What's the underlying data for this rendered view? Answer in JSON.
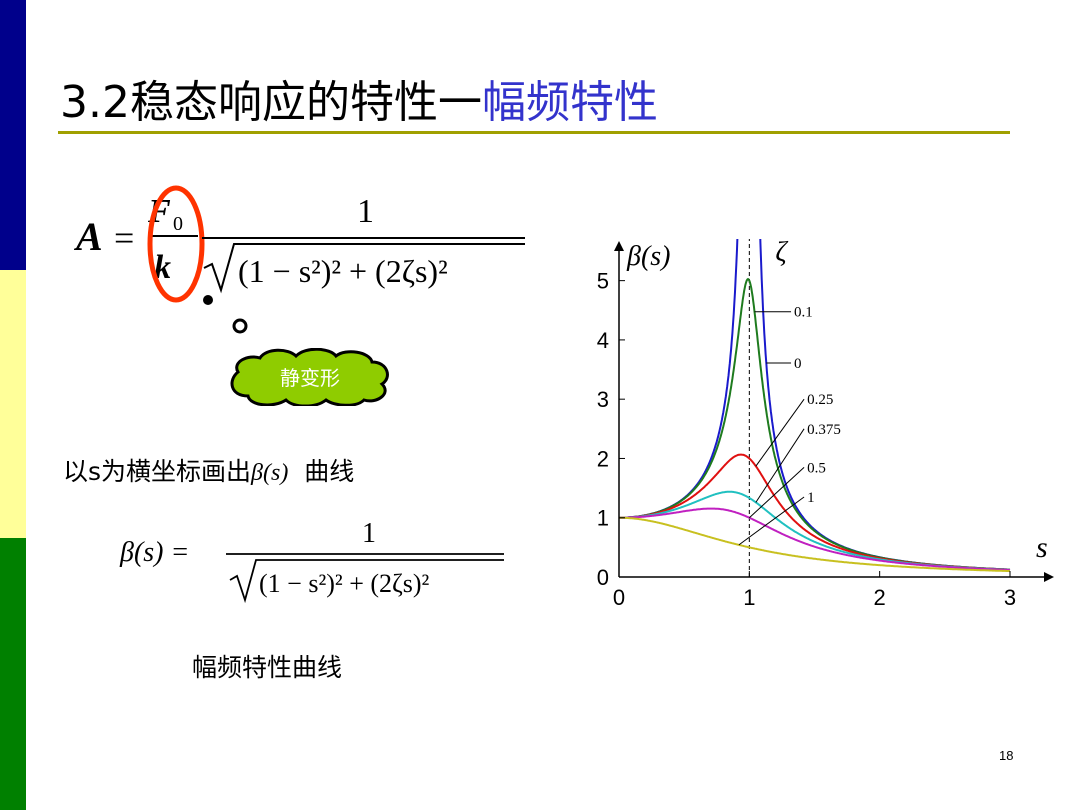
{
  "title": {
    "main": "3.2稳态响应的特性一",
    "highlight": "幅频特性"
  },
  "formula_top": {
    "lhs": "A",
    "eq": "=",
    "f0": "F",
    "f0_sub": "0",
    "k": "k",
    "num": "1",
    "den": "(1 − s²)² + (2ζs)²"
  },
  "callout": "静变形",
  "text_line": {
    "prefix": "以s为横坐标画出",
    "beta": "β(s)",
    "suffix": "曲线"
  },
  "formula_bottom": {
    "lhs": "β(s) =",
    "num": "1",
    "den": "(1 − s²)² + (2ζs)²"
  },
  "caption": "幅频特性曲线",
  "page_number": "18",
  "colors": {
    "accent": "#3333cc",
    "rule": "#a0a000",
    "callout_fill": "#8fcc00",
    "ellipse": "#ff3300"
  },
  "chart_data": {
    "type": "line",
    "xlabel": "s",
    "ylabel": "β(s)",
    "legend_title": "ζ",
    "xlim": [
      0,
      3
    ],
    "ylim": [
      0,
      5.5
    ],
    "x_ticks": [
      "0",
      "1",
      "2",
      "3"
    ],
    "y_ticks": [
      "0",
      "1",
      "2",
      "3",
      "4",
      "5"
    ],
    "reference_line": {
      "x": 1,
      "style": "dashed"
    },
    "series": [
      {
        "name": "0",
        "zeta": 0,
        "color": "#1a1acc"
      },
      {
        "name": "0.1",
        "zeta": 0.1,
        "color": "#1e7b1e"
      },
      {
        "name": "0.25",
        "zeta": 0.25,
        "color": "#e01010"
      },
      {
        "name": "0.375",
        "zeta": 0.375,
        "color": "#20c0c0"
      },
      {
        "name": "0.5",
        "zeta": 0.5,
        "color": "#c020c0"
      },
      {
        "name": "1",
        "zeta": 1,
        "color": "#c8c020"
      }
    ]
  }
}
